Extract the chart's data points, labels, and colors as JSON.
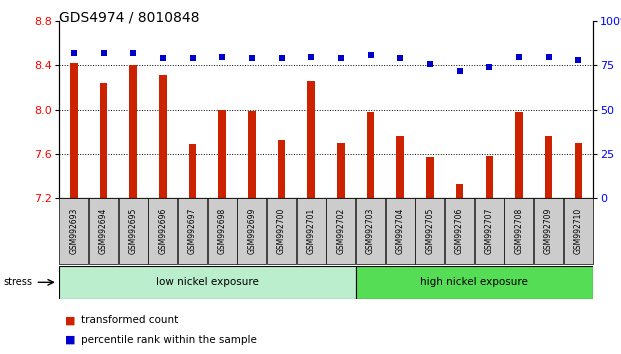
{
  "title": "GDS4974 / 8010848",
  "samples": [
    "GSM992693",
    "GSM992694",
    "GSM992695",
    "GSM992696",
    "GSM992697",
    "GSM992698",
    "GSM992699",
    "GSM992700",
    "GSM992701",
    "GSM992702",
    "GSM992703",
    "GSM992704",
    "GSM992705",
    "GSM992706",
    "GSM992707",
    "GSM992708",
    "GSM992709",
    "GSM992710"
  ],
  "bar_values": [
    8.42,
    8.24,
    8.4,
    8.31,
    7.69,
    8.0,
    7.99,
    7.73,
    8.26,
    7.7,
    7.98,
    7.76,
    7.57,
    7.33,
    7.58,
    7.98,
    7.76,
    7.7
  ],
  "dot_values": [
    82,
    82,
    82,
    79,
    79,
    80,
    79,
    79,
    80,
    79,
    81,
    79,
    76,
    72,
    74,
    80,
    80,
    78
  ],
  "ylim_left": [
    7.2,
    8.8
  ],
  "ylim_right": [
    0,
    100
  ],
  "yticks_left": [
    7.2,
    7.6,
    8.0,
    8.4,
    8.8
  ],
  "yticks_right": [
    0,
    25,
    50,
    75,
    100
  ],
  "bar_color": "#cc2200",
  "dot_color": "#0000cc",
  "group1_label": "low nickel exposure",
  "group2_label": "high nickel exposure",
  "group1_count": 10,
  "group2_count": 8,
  "group1_color": "#bbeecc",
  "group2_color": "#55dd55",
  "stress_label": "stress",
  "legend_bar": "transformed count",
  "legend_dot": "percentile rank within the sample",
  "bg_color": "#ffffff",
  "plot_bg": "#ffffff",
  "label_box_bg": "#cccccc",
  "baseline": 7.2,
  "bar_width": 0.25,
  "title_fontsize": 10,
  "tick_fontsize": 7,
  "sample_fontsize": 5.5
}
